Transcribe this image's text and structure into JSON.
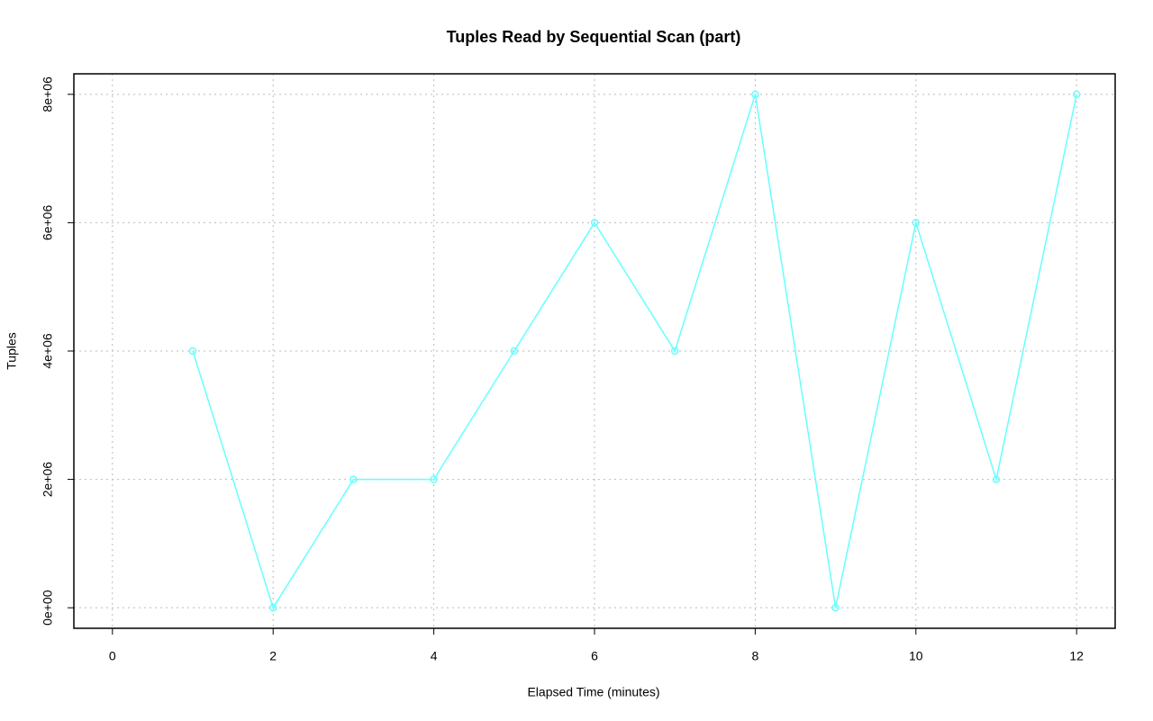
{
  "chart_data": {
    "type": "line",
    "title": "Tuples Read by Sequential Scan (part)",
    "x_label": "Elapsed Time (minutes)",
    "y_label": "Tuples",
    "x": [
      1,
      2,
      3,
      4,
      5,
      6,
      7,
      8,
      9,
      10,
      11,
      12
    ],
    "values": [
      4000000,
      0,
      2000000,
      2000000,
      4000000,
      6000000,
      4000000,
      8000000,
      0,
      6000000,
      2000000,
      8000000
    ],
    "color": "#66ffff",
    "xlim": [
      -0.48,
      12.48
    ],
    "xticks": [
      0,
      2,
      4,
      6,
      8,
      10,
      12
    ],
    "ylim": [
      -320000,
      8320000
    ],
    "yticks": [
      {
        "value": 0,
        "label": "0e+00"
      },
      {
        "value": 2000000,
        "label": "2e+06"
      },
      {
        "value": 4000000,
        "label": "4e+06"
      },
      {
        "value": 6000000,
        "label": "6e+06"
      },
      {
        "value": 8000000,
        "label": "8e+06"
      }
    ],
    "grid": true
  }
}
